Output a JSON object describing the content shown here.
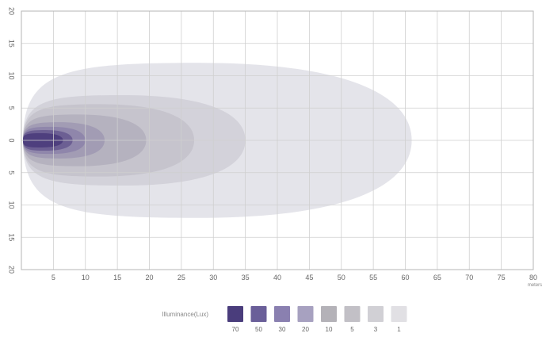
{
  "chart_data": {
    "type": "contour",
    "title": "",
    "xlabel": "",
    "ylabel": "",
    "x_unit": "meters",
    "xlim": [
      0,
      80
    ],
    "ylim": [
      -20,
      20
    ],
    "x_ticks": [
      5,
      10,
      15,
      20,
      25,
      30,
      35,
      40,
      45,
      50,
      55,
      60,
      65,
      70,
      75,
      80
    ],
    "y_ticks": [
      20,
      15,
      10,
      5,
      0,
      -5,
      -10,
      -15,
      -20
    ],
    "y_tick_labels": [
      "20",
      "15",
      "10",
      "5",
      "0",
      "5",
      "10",
      "15",
      "20"
    ],
    "grid": true,
    "legend": {
      "title": "Illuminance(Lux)",
      "placement": "bottom-center",
      "entries": [
        "70",
        "50",
        "30",
        "20",
        "10",
        "5",
        "3",
        "1"
      ]
    },
    "series": [
      {
        "name": "1",
        "reach_m": 61.0,
        "half_width_m": 12.0,
        "color": "#e4e4ea"
      },
      {
        "name": "3",
        "reach_m": 35.0,
        "half_width_m": 7.0,
        "color": "#d3d2da"
      },
      {
        "name": "5",
        "reach_m": 27.0,
        "half_width_m": 5.6,
        "color": "#c6c4cd"
      },
      {
        "name": "10",
        "reach_m": 19.5,
        "half_width_m": 4.0,
        "color": "#b5b2bf"
      },
      {
        "name": "20",
        "reach_m": 13.0,
        "half_width_m": 2.8,
        "color": "#a29cb4"
      },
      {
        "name": "30",
        "reach_m": 10.0,
        "half_width_m": 2.1,
        "color": "#8f86ab"
      },
      {
        "name": "50",
        "reach_m": 8.0,
        "half_width_m": 1.6,
        "color": "#6c5f93"
      },
      {
        "name": "70",
        "reach_m": 6.5,
        "half_width_m": 1.1,
        "color": "#4e3f7e"
      }
    ],
    "legend_colors": [
      "#4a3d7c",
      "#6a5f99",
      "#8a80b0",
      "#a7a1c0",
      "#b4b2b8",
      "#c2c0c6",
      "#d1d0d5",
      "#e1e0e4"
    ]
  }
}
